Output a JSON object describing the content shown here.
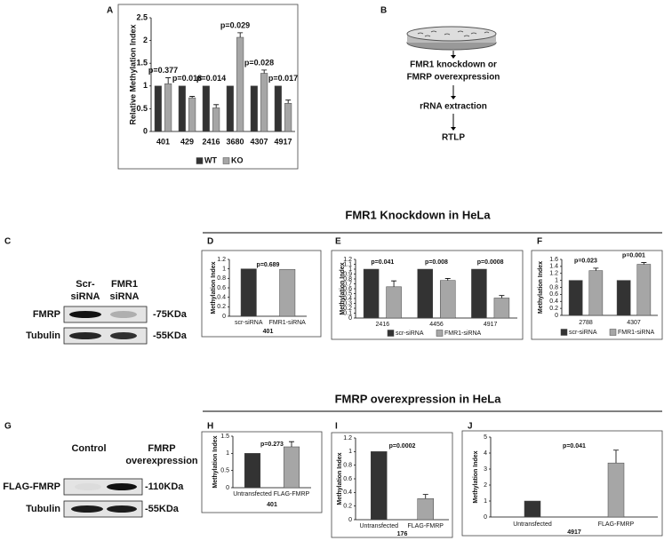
{
  "panel_labels": [
    "A",
    "B",
    "C",
    "D",
    "E",
    "F",
    "G",
    "H",
    "I",
    "J"
  ],
  "flowchart": {
    "steps": [
      [
        "FMR1 knockdown or",
        "FMRP overexpression"
      ],
      [
        "rRNA extraction"
      ],
      [
        "RTLP"
      ]
    ]
  },
  "sections": [
    "FMR1 Knockdown in HeLa",
    "FMRP overexpression in HeLa"
  ],
  "blots": [
    {
      "lanes": [
        [
          "Scr-",
          "siRNA"
        ],
        [
          "FMR1",
          "siRNA"
        ]
      ],
      "rows": [
        "FMRP",
        "Tubulin"
      ],
      "sizes": [
        "-75KDa",
        "-55KDa"
      ]
    },
    {
      "lanes": [
        [
          "Control"
        ],
        [
          "FMRP",
          "overexpression"
        ]
      ],
      "rows": [
        "FLAG-FMRP",
        "Tubulin"
      ],
      "sizes": [
        "-110KDa",
        "-55KDa"
      ]
    }
  ],
  "chart_data": [
    {
      "type": "bar",
      "ylabel": "Relative Methylation Index",
      "categories": [
        "401",
        "429",
        "2416",
        "3680",
        "4307",
        "4917"
      ],
      "series": [
        {
          "name": "WT",
          "color": "#333333",
          "values": [
            1,
            1,
            1,
            1,
            1,
            1
          ]
        },
        {
          "name": "KO",
          "color": "#a6a6a6",
          "values": [
            1.05,
            0.74,
            0.52,
            2.07,
            1.28,
            0.62
          ],
          "errors": [
            0.13,
            0.03,
            0.07,
            0.1,
            0.07,
            0.07
          ]
        }
      ],
      "annotations": [
        "p=0.377",
        "p=0.018",
        "p=0.014",
        "p=0.029",
        "p=0.028",
        "p=0.017"
      ],
      "ylim": [
        0,
        2.5
      ],
      "yticks": [
        0,
        0.5,
        1,
        1.5,
        2,
        2.5
      ],
      "legend": "bottom"
    },
    {
      "type": "bar",
      "ylabel": "Methylation Index",
      "xlabel": "401",
      "categories": [
        "scr-siRNA",
        "FMR1-siRNA"
      ],
      "values": [
        1,
        0.99
      ],
      "colors": [
        "#333333",
        "#a6a6a6"
      ],
      "annotation": "p=0.689",
      "ylim": [
        0,
        1.2
      ],
      "yticks": [
        0,
        0.2,
        0.4,
        0.6,
        0.8,
        1,
        1.2
      ]
    },
    {
      "type": "bar",
      "ylabel": "Methylation Index",
      "categories": [
        "2416",
        "4456",
        "4917"
      ],
      "series": [
        {
          "name": "scr-siRNA",
          "color": "#333333",
          "values": [
            1,
            1,
            1
          ]
        },
        {
          "name": "FMR1-siRNA",
          "color": "#a6a6a6",
          "values": [
            0.64,
            0.77,
            0.41
          ],
          "errors": [
            0.12,
            0.04,
            0.05
          ]
        }
      ],
      "annotations": [
        "p=0.041",
        "p=0.008",
        "p=0.0008"
      ],
      "ylim": [
        0,
        1.2
      ],
      "yticks": [
        0,
        0.1,
        0.2,
        0.3,
        0.4,
        0.5,
        0.6,
        0.7,
        0.8,
        0.9,
        1,
        1.1,
        1.2
      ],
      "legend": "bottom"
    },
    {
      "type": "bar",
      "ylabel": "Methylation Index",
      "categories": [
        "2788",
        "4307"
      ],
      "series": [
        {
          "name": "scr-siRNA",
          "color": "#333333",
          "values": [
            1,
            1
          ]
        },
        {
          "name": "FMR1-siRNA",
          "color": "#a6a6a6",
          "values": [
            1.28,
            1.46
          ],
          "errors": [
            0.07,
            0.05
          ]
        }
      ],
      "annotations": [
        "p=0.023",
        "p=0.001"
      ],
      "ylim": [
        0,
        1.6
      ],
      "yticks": [
        0,
        0.2,
        0.4,
        0.6,
        0.8,
        1,
        1.2,
        1.4,
        1.6
      ],
      "legend": "bottom"
    },
    {
      "type": "bar",
      "ylabel": "Methylation Index",
      "xlabel": "401",
      "categories": [
        "Untransfected",
        "FLAG-FMRP"
      ],
      "values": [
        1,
        1.19
      ],
      "errors": [
        null,
        0.15
      ],
      "colors": [
        "#333333",
        "#a6a6a6"
      ],
      "annotation": "p=0.273",
      "ylim": [
        0,
        1.5
      ],
      "yticks": [
        0,
        0.5,
        1,
        1.5
      ]
    },
    {
      "type": "bar",
      "ylabel": "Methylation Index",
      "xlabel": "176",
      "categories": [
        "Untransfected",
        "FLAG-FMRP"
      ],
      "values": [
        1,
        0.31
      ],
      "errors": [
        null,
        0.06
      ],
      "colors": [
        "#333333",
        "#a6a6a6"
      ],
      "annotation": "p=0.0002",
      "ylim": [
        0,
        1.2
      ],
      "yticks": [
        0,
        0.2,
        0.4,
        0.6,
        0.8,
        1,
        1.2
      ]
    },
    {
      "type": "bar",
      "ylabel": "Methylation Index",
      "xlabel": "4917",
      "categories": [
        "Untransfected",
        "FLAG-FMRP"
      ],
      "values": [
        1,
        3.38
      ],
      "errors": [
        null,
        0.8
      ],
      "colors": [
        "#333333",
        "#a6a6a6"
      ],
      "annotation": "p=0.041",
      "ylim": [
        0,
        5
      ],
      "yticks": [
        0,
        1,
        2,
        3,
        4,
        5
      ]
    }
  ]
}
